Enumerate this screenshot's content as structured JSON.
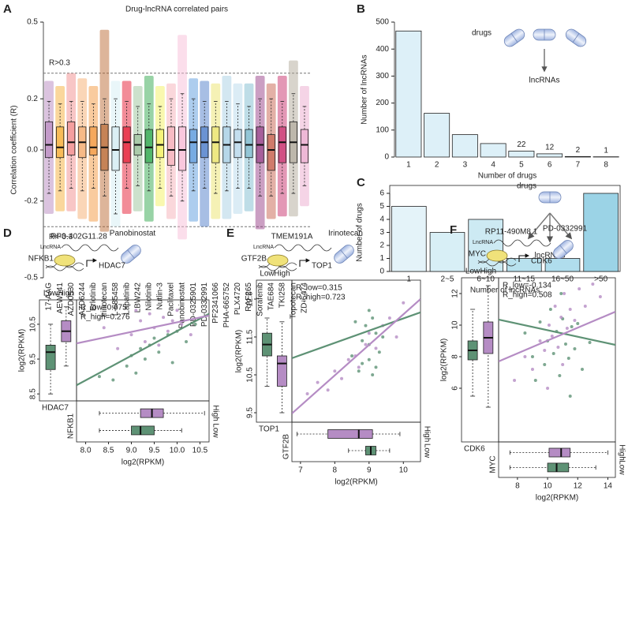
{
  "chart_data": [
    {
      "type": "box",
      "panel": "A",
      "title": "Drug-lncRNA correlated pairs",
      "ylabel": "Correlation coefficient (R)",
      "ylim": [
        -0.5,
        0.5
      ],
      "yticks": [
        -0.5,
        -0.2,
        {
          "value": 0,
          "label": "0.0"
        },
        0.2,
        0.5
      ],
      "reference_lines": [
        {
          "value": 0.3,
          "label": "R>0.3"
        },
        {
          "value": -0.3,
          "label": "R<-0.3"
        }
      ],
      "categories": [
        "17-AAG",
        "AEW541",
        "AZD0530",
        "AZD6244",
        "Erlotinib",
        "Irinotecan",
        "L-685458",
        "Lapatinib",
        "LBW242",
        "Nilotinib",
        "Nutlin-3",
        "Paclitaxel",
        "Panobinostat",
        "PD-0325901",
        "PD-0332991",
        "PF2341066",
        "PHA-665752",
        "PLX4720",
        "RAF265",
        "Sorafenib",
        "TAE684",
        "TKI258",
        "Topotecan",
        "ZD-6474"
      ],
      "colors": [
        "#b07ab8",
        "#f5a623",
        "#f08080",
        "#f4a460",
        "#f28c28",
        "#b35a1f",
        "#cfeaf2",
        "#e3001b",
        "#8fbc8f",
        "#1a9e3a",
        "#f2ef4e",
        "#f4a6b0",
        "#f7b6d2",
        "#4a90d9",
        "#3b6fc4",
        "#e8e05a",
        "#9ecae1",
        "#b0d4e8",
        "#6fb3c9",
        "#8b2a7a",
        "#c1503a",
        "#c2185b",
        "#a89f8f",
        "#e8a0c8"
      ],
      "whisker_low": [
        -0.17,
        -0.16,
        -0.15,
        -0.16,
        -0.15,
        -0.18,
        -0.25,
        -0.15,
        -0.14,
        -0.16,
        -0.15,
        -0.18,
        -0.2,
        -0.16,
        -0.15,
        -0.17,
        -0.16,
        -0.15,
        -0.15,
        -0.18,
        -0.18,
        -0.17,
        -0.17,
        -0.14
      ],
      "q1": [
        -0.03,
        -0.03,
        -0.02,
        -0.03,
        -0.02,
        -0.08,
        -0.08,
        -0.05,
        -0.02,
        -0.05,
        -0.03,
        -0.06,
        -0.08,
        -0.05,
        -0.03,
        -0.05,
        -0.05,
        -0.03,
        -0.03,
        -0.05,
        -0.08,
        -0.05,
        -0.05,
        -0.05
      ],
      "median": [
        0.02,
        0.01,
        0.03,
        0.03,
        0.01,
        0.01,
        0,
        0.03,
        0.02,
        0.01,
        0.02,
        0,
        0,
        0.03,
        0.03,
        0.03,
        0.02,
        0.03,
        0.02,
        0.02,
        0,
        0.03,
        0.03,
        0.02
      ],
      "q3": [
        0.11,
        0.09,
        0.11,
        0.09,
        0.09,
        0.1,
        0.09,
        0.09,
        0.06,
        0.08,
        0.08,
        0.09,
        0.09,
        0.08,
        0.09,
        0.09,
        0.09,
        0.08,
        0.08,
        0.09,
        0.06,
        0.09,
        0.11,
        0.08
      ],
      "whisker_high": [
        0.19,
        0.18,
        0.19,
        0.19,
        0.18,
        0.2,
        0.2,
        0.19,
        0.17,
        0.18,
        0.17,
        0.2,
        0.22,
        0.2,
        0.19,
        0.19,
        0.19,
        0.18,
        0.17,
        0.2,
        0.2,
        0.19,
        0.22,
        0.17
      ],
      "point_min": [
        -0.25,
        -0.24,
        -0.24,
        -0.27,
        -0.28,
        -0.32,
        -0.3,
        -0.25,
        -0.24,
        -0.28,
        -0.22,
        -0.27,
        -0.35,
        -0.28,
        -0.3,
        -0.27,
        -0.27,
        -0.25,
        -0.24,
        -0.31,
        -0.27,
        -0.26,
        -0.26,
        -0.22
      ],
      "point_max": [
        0.27,
        0.25,
        0.3,
        0.28,
        0.25,
        0.47,
        0.27,
        0.27,
        0.25,
        0.29,
        0.25,
        0.26,
        0.45,
        0.28,
        0.27,
        0.26,
        0.29,
        0.26,
        0.26,
        0.29,
        0.26,
        0.29,
        0.35,
        0.25
      ]
    },
    {
      "type": "bar",
      "panel": "B",
      "xlabel": "Number of drugs",
      "ylabel": "Number of lncRNAs",
      "categories": [
        "1",
        "2",
        "3",
        "4",
        "5",
        "6",
        "7",
        "8"
      ],
      "values": [
        467,
        162,
        83,
        50,
        22,
        12,
        2,
        1
      ],
      "colors": [
        "#ddf0f8",
        "#ddf0f8",
        "#ddf0f8",
        "#ddf0f8",
        "#ddf0f8",
        "#ddf0f8",
        "#ddf0f8",
        "#ddf0f8"
      ],
      "ylim": [
        0,
        500
      ],
      "yticks": [
        0,
        100,
        200,
        300,
        400,
        500
      ],
      "frame": false,
      "icon": {
        "source": "drugs",
        "target": "lncRNAs",
        "pills": 3
      }
    },
    {
      "type": "bar",
      "panel": "C",
      "xlabel": "Number of lncRNAs",
      "ylabel": "Number of drugs",
      "categories": [
        "1",
        "2~5",
        "6~10",
        "11~15",
        "16~50",
        ">50"
      ],
      "values": [
        5,
        3,
        4,
        1,
        1,
        6
      ],
      "colors": [
        "#e4f3f9",
        "#d8eff6",
        "#cdeaf3",
        "#b8e1ee",
        "#b0dded",
        "#9bd3e6"
      ],
      "ylim": [
        0,
        6
      ],
      "yticks": [
        0,
        1,
        2,
        3,
        4,
        5,
        6
      ],
      "frame": true,
      "icon": {
        "source": "drugs",
        "target": "lncRNAs",
        "pills": 1
      }
    },
    {
      "type": "scatter_box",
      "panel": "D",
      "diagram": {
        "lncrna": "RP3-402G11.28",
        "tag": "LncRNA",
        "tf": "NFKB1",
        "target": "HDAC7",
        "drug": "Panobinostat"
      },
      "xlabel": "log2(RPKM)",
      "ylabel": "log2(RPKM)",
      "xlim": [
        7.8,
        10.7
      ],
      "xticks": [
        {
          "value": 8,
          "label": "8.0"
        },
        8.5,
        {
          "value": 9,
          "label": "9.0"
        },
        9.5,
        {
          "value": 10,
          "label": "10.0"
        },
        10.5
      ],
      "ylim": [
        8.3,
        11.2
      ],
      "yticks": [
        8.5,
        9.5,
        10.5
      ],
      "annotations": [
        "R_low=0.675",
        "R_high=0.276"
      ],
      "series": [
        {
          "name": "Low",
          "color": "#5e9275",
          "x": [
            8.3,
            8.6,
            8.9,
            9.0,
            9.1,
            9.2,
            9.3,
            9.4,
            9.5,
            9.6,
            9.8,
            9.9,
            10.0,
            10.2,
            10.4
          ],
          "y": [
            9.0,
            8.9,
            9.3,
            9.6,
            9.1,
            9.8,
            9.5,
            9.9,
            10.1,
            9.7,
            10.2,
            9.4,
            10.3,
            10.0,
            10.5
          ],
          "fit": {
            "x": [
              7.8,
              10.7
            ],
            "y": [
              8.75,
              10.8
            ]
          },
          "target_box": [
            8.5,
            9.2,
            9.7,
            9.9,
            10.5
          ],
          "tf_box": [
            8.3,
            9.0,
            9.2,
            9.5,
            10.1
          ]
        },
        {
          "name": "High",
          "color": "#b58cc4",
          "x": [
            8.4,
            8.7,
            9.0,
            9.2,
            9.3,
            9.4,
            9.5,
            9.6,
            9.7,
            9.8,
            10.0,
            10.1,
            10.3,
            9.1,
            9.9
          ],
          "y": [
            10.4,
            9.8,
            10.2,
            10.6,
            10.0,
            10.8,
            10.4,
            9.9,
            10.7,
            10.3,
            10.9,
            10.5,
            10.2,
            10.9,
            10.6
          ],
          "fit": {
            "x": [
              7.8,
              10.7
            ],
            "y": [
              9.95,
              10.75
            ]
          },
          "target_box": [
            9.3,
            10.0,
            10.3,
            10.6,
            11.0
          ],
          "tf_box": [
            8.3,
            9.2,
            9.45,
            9.7,
            10.6
          ]
        }
      ]
    },
    {
      "type": "scatter_box",
      "panel": "E",
      "diagram": {
        "lncrna": "TMEM191A",
        "tag": "LncRNA",
        "tf": "GTF2B",
        "target": "TOP1",
        "drug": "Irinotecan"
      },
      "xlabel": "log2(RPKM)",
      "ylabel": "log2(RPKM)",
      "xlim": [
        6.75,
        10.5
      ],
      "xticks": [
        7,
        8,
        9,
        10
      ],
      "ylim": [
        9.25,
        13.0
      ],
      "yticks": [
        9.5,
        10.5,
        11.5,
        12.5
      ],
      "annotations": [
        "R_low=0.315",
        "R_high=0.723"
      ],
      "series": [
        {
          "name": "Low",
          "color": "#5e9275",
          "x": [
            8.5,
            8.7,
            8.8,
            8.9,
            9.0,
            9.0,
            9.1,
            9.1,
            9.2,
            9.3,
            8.6,
            9.4,
            9.0,
            8.8,
            9.2
          ],
          "y": [
            11.0,
            10.6,
            11.4,
            11.8,
            10.9,
            11.3,
            12.0,
            10.5,
            11.6,
            11.1,
            11.9,
            11.5,
            12.2,
            10.8,
            10.7
          ],
          "fit": {
            "x": [
              6.75,
              10.5
            ],
            "y": [
              10.94,
              12.15
            ]
          },
          "target_box": [
            10.2,
            11.0,
            11.3,
            11.6,
            12.0
          ],
          "tf_box": [
            8.4,
            8.9,
            9.05,
            9.2,
            9.6
          ]
        },
        {
          "name": "High",
          "color": "#b58cc4",
          "x": [
            7.2,
            7.5,
            7.8,
            8.0,
            8.2,
            8.4,
            8.6,
            8.7,
            8.9,
            9.0,
            9.2,
            9.4,
            9.6,
            9.8,
            10.0
          ],
          "y": [
            10.0,
            10.3,
            10.1,
            10.6,
            10.4,
            10.9,
            11.0,
            10.7,
            11.3,
            11.6,
            11.2,
            11.8,
            12.0,
            11.5,
            12.4
          ],
          "fit": {
            "x": [
              6.75,
              10.5
            ],
            "y": [
              9.48,
              12.5
            ]
          },
          "target_box": [
            9.5,
            10.2,
            10.8,
            11.0,
            11.9
          ],
          "tf_box": [
            6.9,
            7.8,
            8.7,
            9.1,
            9.9
          ]
        }
      ]
    },
    {
      "type": "scatter_box",
      "panel": "F",
      "diagram": {
        "lncrna": "RP11-490M8.1",
        "tag": "LncRNA",
        "tf": "MYC",
        "target": "CDK6",
        "drug": "PD-0332991"
      },
      "xlabel": "log2(RPKM)",
      "ylabel": "log2(RPKM)",
      "xlim": [
        6.75,
        14.5
      ],
      "xticks": [
        8,
        10,
        12,
        14
      ],
      "ylim": [
        2.6,
        13
      ],
      "yticks": [
        6,
        8,
        10,
        12
      ],
      "annotations": [
        "R_low=-0.134",
        "R_high=0.508"
      ],
      "series": [
        {
          "name": "Low",
          "color": "#5e9275",
          "x": [
            8.5,
            9.0,
            9.5,
            9.8,
            10.0,
            10.2,
            10.4,
            10.6,
            10.8,
            11.0,
            11.2,
            11.4,
            11.6,
            11.8,
            12.0,
            12.3,
            9.2,
            10.9,
            11.5,
            12.8
          ],
          "y": [
            9.5,
            8.0,
            10.2,
            7.5,
            9.0,
            11.0,
            8.2,
            9.6,
            6.8,
            10.4,
            8.8,
            7.9,
            9.9,
            8.5,
            10.1,
            7.2,
            6.5,
            12.0,
            5.5,
            8.9
          ],
          "fit": {
            "x": [
              6.75,
              14.5
            ],
            "y": [
              10.35,
              8.75
            ]
          },
          "target_box": [
            5.5,
            7.8,
            8.4,
            9.0,
            11.0
          ],
          "tf_box": [
            7.5,
            10.0,
            10.6,
            11.4,
            13.2
          ]
        },
        {
          "name": "High",
          "color": "#b58cc4",
          "x": [
            7.8,
            8.5,
            9.0,
            9.5,
            9.8,
            10.1,
            10.3,
            10.5,
            10.7,
            10.9,
            11.1,
            11.3,
            11.5,
            11.8,
            12.1,
            12.5,
            13.0,
            13.5,
            10.0,
            11.0
          ],
          "y": [
            6.5,
            8.0,
            7.2,
            9.0,
            8.4,
            10.0,
            9.3,
            11.2,
            8.6,
            10.5,
            12.0,
            9.8,
            11.0,
            10.3,
            12.3,
            11.2,
            12.6,
            11.8,
            6.0,
            7.5
          ],
          "fit": {
            "x": [
              6.75,
              14.5
            ],
            "y": [
              7.7,
              10.85
            ]
          },
          "target_box": [
            4.8,
            8.2,
            9.2,
            10.2,
            12.5
          ],
          "tf_box": [
            7.5,
            10.1,
            10.9,
            11.5,
            14.0
          ]
        }
      ]
    }
  ]
}
